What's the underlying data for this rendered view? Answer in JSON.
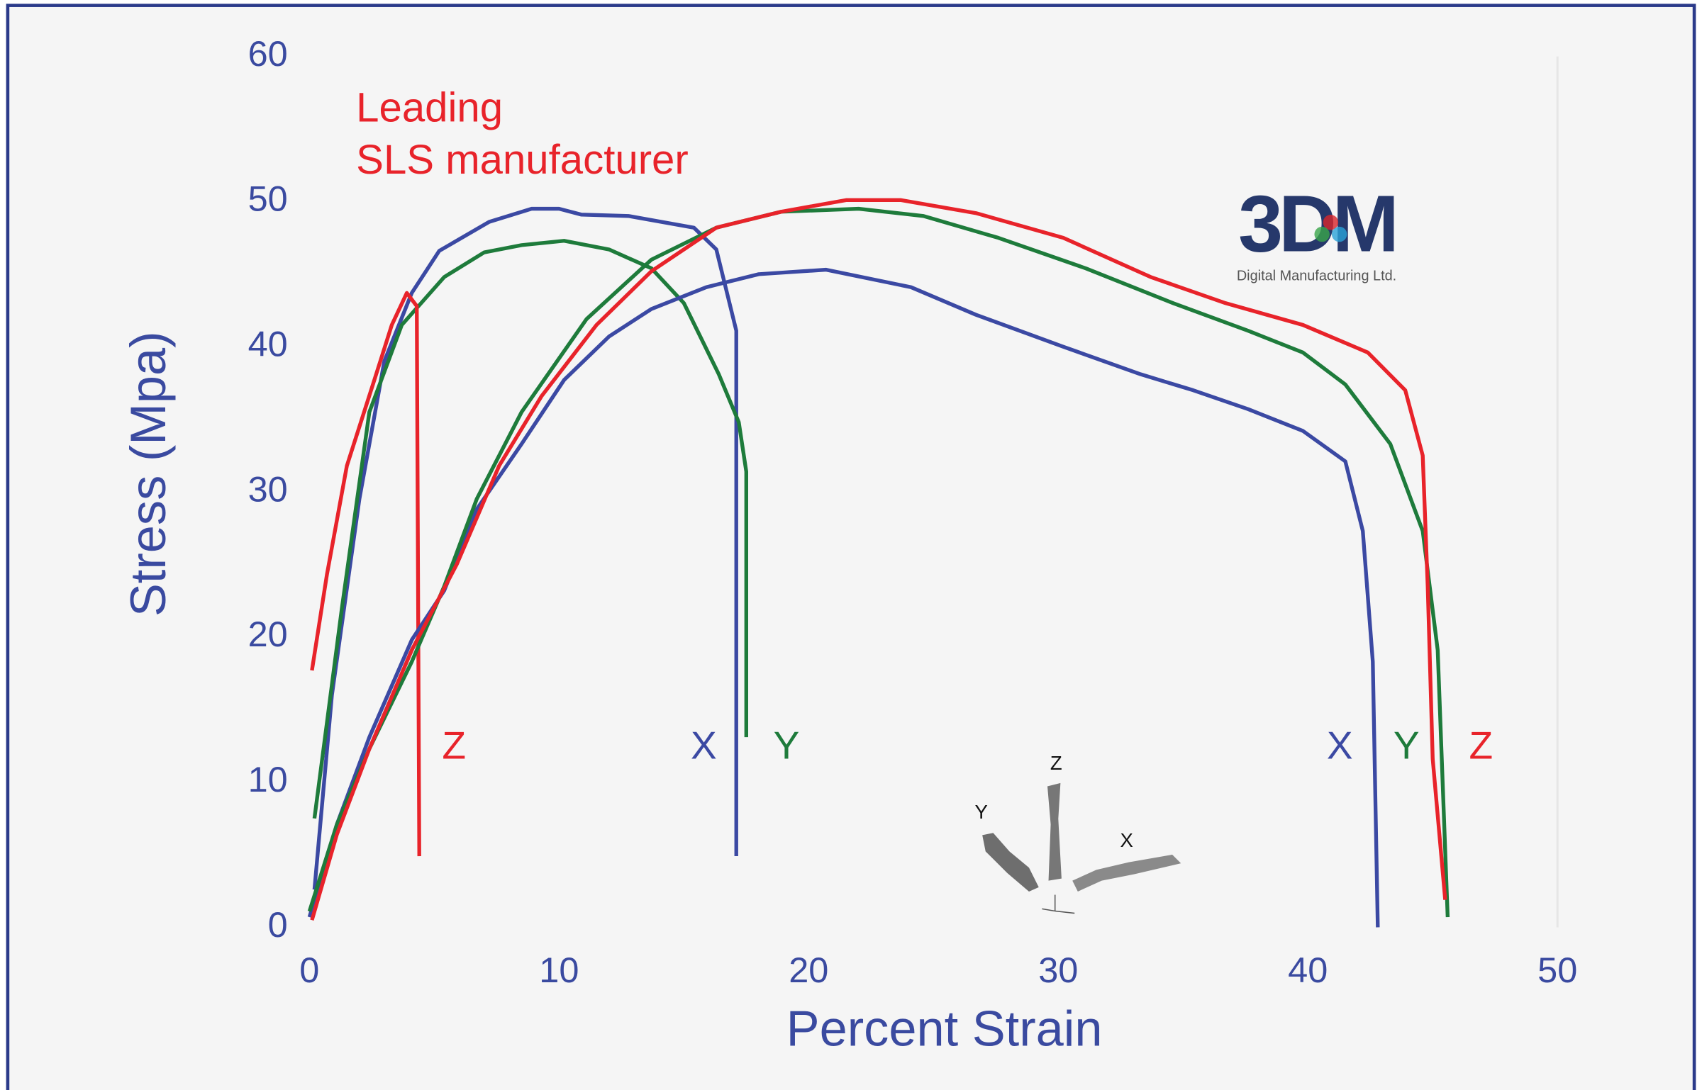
{
  "chart_data": {
    "type": "line",
    "x_label": "Percent Strain",
    "y_label": "Stress (Mpa)",
    "annotation": [
      "Leading",
      "SLS manufacturer"
    ],
    "logo_text": "3DM",
    "logo_subtext": "Digital Manufacturing Ltd.",
    "inset_labels": [
      "Z",
      "Y",
      "X"
    ],
    "xlim": [
      0,
      50
    ],
    "ylim": [
      0,
      60
    ],
    "xticks": [
      0,
      10,
      20,
      30,
      40,
      50
    ],
    "yticks": [
      0,
      10,
      20,
      30,
      40,
      50,
      60
    ],
    "grid": false,
    "series": [
      {
        "name": "X",
        "color": "#3b49a3",
        "x": [
          0.2,
          0.9,
          2,
          3,
          4.1,
          5.2,
          7.2,
          8.9,
          10,
          10.9,
          12.8,
          15.4,
          16.3,
          17.1,
          17.1
        ],
        "values": [
          2.6,
          16,
          29.5,
          39,
          43.7,
          46.6,
          48.6,
          49.5,
          49.5,
          49.1,
          49,
          48.2,
          46.7,
          41.1,
          4.9
        ]
      },
      {
        "name": "Y",
        "color": "#1e7b3b",
        "x": [
          0.2,
          1.3,
          2.4,
          3.7,
          5.4,
          7,
          8.5,
          10.2,
          12,
          13.7,
          15,
          16.4,
          17.2,
          17.5,
          17.5
        ],
        "values": [
          7.5,
          22,
          35.5,
          41.5,
          44.8,
          46.5,
          47,
          47.3,
          46.7,
          45.4,
          43,
          38.1,
          34.8,
          31.4,
          13.1
        ]
      },
      {
        "name": "Z",
        "color": "#e8232a",
        "x": [
          0.1,
          0.7,
          1.5,
          2.6,
          3.3,
          3.9,
          4.3,
          4.4
        ],
        "values": [
          17.7,
          24.3,
          31.8,
          37.7,
          41.5,
          43.7,
          42.8,
          4.9
        ]
      },
      {
        "name": "X",
        "color": "#3b49a3",
        "x": [
          0,
          1.1,
          2.4,
          4.1,
          5.4,
          6.7,
          8.5,
          10.2,
          12,
          13.7,
          15.9,
          18,
          20.7,
          24.1,
          26.7,
          30.2,
          33.3,
          35.4,
          37.6,
          39.8,
          41.5,
          42.2,
          42.6,
          42.8
        ],
        "values": [
          0.7,
          7.1,
          13.1,
          19.8,
          23.2,
          28.8,
          33.3,
          37.7,
          40.7,
          42.6,
          44.1,
          45,
          45.3,
          44.1,
          42.2,
          40,
          38.1,
          37,
          35.7,
          34.2,
          32.1,
          27.3,
          18.3,
          0
        ]
      },
      {
        "name": "Y",
        "color": "#1e7b3b",
        "x": [
          0,
          1.1,
          2.4,
          4.1,
          5.4,
          6.7,
          8.5,
          11.1,
          13.7,
          16.3,
          18.9,
          22,
          24.6,
          27.6,
          31.1,
          34.6,
          37.6,
          39.8,
          41.5,
          43.3,
          44.6,
          45.2,
          45.6
        ],
        "values": [
          1.1,
          7.1,
          12.3,
          18.3,
          23.5,
          29.5,
          35.5,
          41.9,
          46,
          48.2,
          49.3,
          49.5,
          49,
          47.5,
          45.4,
          43,
          41.1,
          39.6,
          37.4,
          33.3,
          27.3,
          19.1,
          0.7
        ]
      },
      {
        "name": "Z",
        "color": "#e8232a",
        "x": [
          0.1,
          1.1,
          2.4,
          4.1,
          5.9,
          7.6,
          9.3,
          11.5,
          13.7,
          16.3,
          18.9,
          21.5,
          23.7,
          26.7,
          30.2,
          33.7,
          36.7,
          39.8,
          42.4,
          43.9,
          44.6,
          44.8,
          45,
          45.5
        ],
        "values": [
          0.5,
          6.4,
          12.3,
          19.1,
          25,
          31.8,
          36.6,
          41.5,
          45.2,
          48.2,
          49.3,
          50.1,
          50.1,
          49.2,
          47.5,
          44.8,
          43,
          41.5,
          39.6,
          37,
          32.5,
          23.5,
          11.6,
          1.9
        ]
      }
    ]
  }
}
